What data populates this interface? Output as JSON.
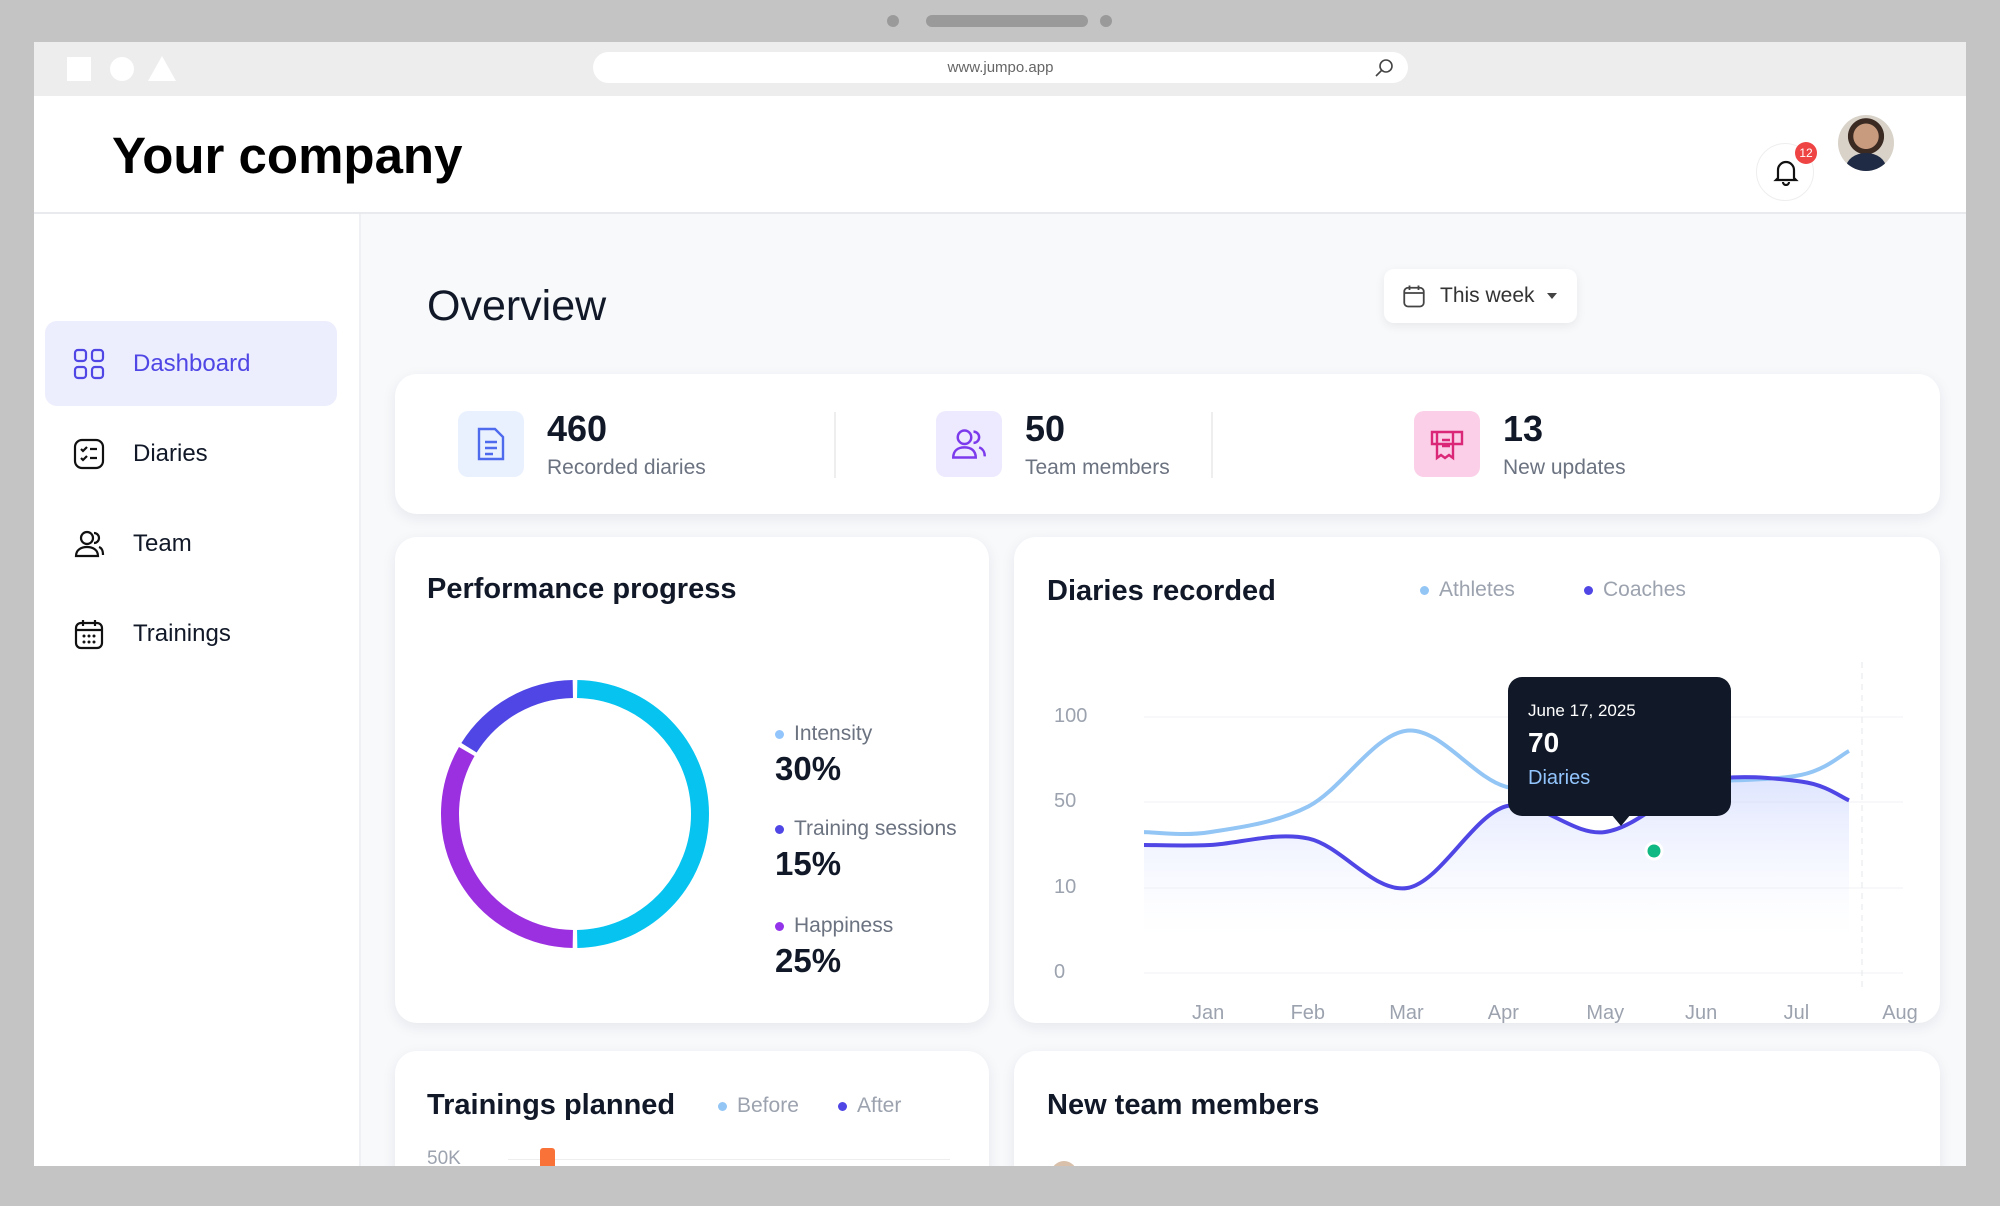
{
  "browser": {
    "url": "www.jumpo.app"
  },
  "header": {
    "title": "Your company",
    "notification_count": "12"
  },
  "sidebar": {
    "items": [
      {
        "label": "Dashboard",
        "icon": "grid-icon",
        "active": true
      },
      {
        "label": "Diaries",
        "icon": "checklist-icon"
      },
      {
        "label": "Team",
        "icon": "users-icon"
      },
      {
        "label": "Trainings",
        "icon": "calendar-icon"
      }
    ]
  },
  "main": {
    "title": "Overview",
    "period": "This week"
  },
  "stats": [
    {
      "value": "460",
      "label": "Recorded diaries",
      "icon": "document-icon",
      "color": "#4f6bed"
    },
    {
      "value": "50",
      "label": "Team members",
      "icon": "users-icon",
      "color": "#7c3aed"
    },
    {
      "value": "13",
      "label": "New updates",
      "icon": "receipt-icon",
      "color": "#ec4899"
    }
  ],
  "performance": {
    "title": "Performance progress",
    "items": [
      {
        "label": "Intensity",
        "value": "30%",
        "color": "#93c5fd"
      },
      {
        "label": "Training sessions",
        "value": "15%",
        "color": "#4f46e5"
      },
      {
        "label": "Happiness",
        "value": "25%",
        "color": "#9333ea"
      }
    ]
  },
  "chart_data": {
    "type": "line",
    "title": "Diaries recorded",
    "categories": [
      "Jan",
      "Feb",
      "Mar",
      "Apr",
      "May",
      "Jun",
      "Jul",
      "Aug"
    ],
    "y_ticks": [
      "100",
      "50",
      "10",
      "0"
    ],
    "series": [
      {
        "name": "Athletes",
        "color": "#93c5f5",
        "values": [
          36,
          48,
          92,
          59,
          60,
          62,
          66,
          80
        ]
      },
      {
        "name": "Coaches",
        "color": "#4f46e5",
        "values": [
          30,
          33,
          10,
          48,
          36,
          62,
          62,
          51
        ]
      }
    ],
    "tooltip": {
      "date": "June 17, 2025",
      "value": "70",
      "label": "Diaries"
    },
    "grid": true,
    "legend": "top"
  },
  "trainings": {
    "title": "Trainings planned",
    "legend": [
      "Before",
      "After"
    ],
    "y_tick": "50K"
  },
  "new_members": {
    "title": "New team members"
  }
}
